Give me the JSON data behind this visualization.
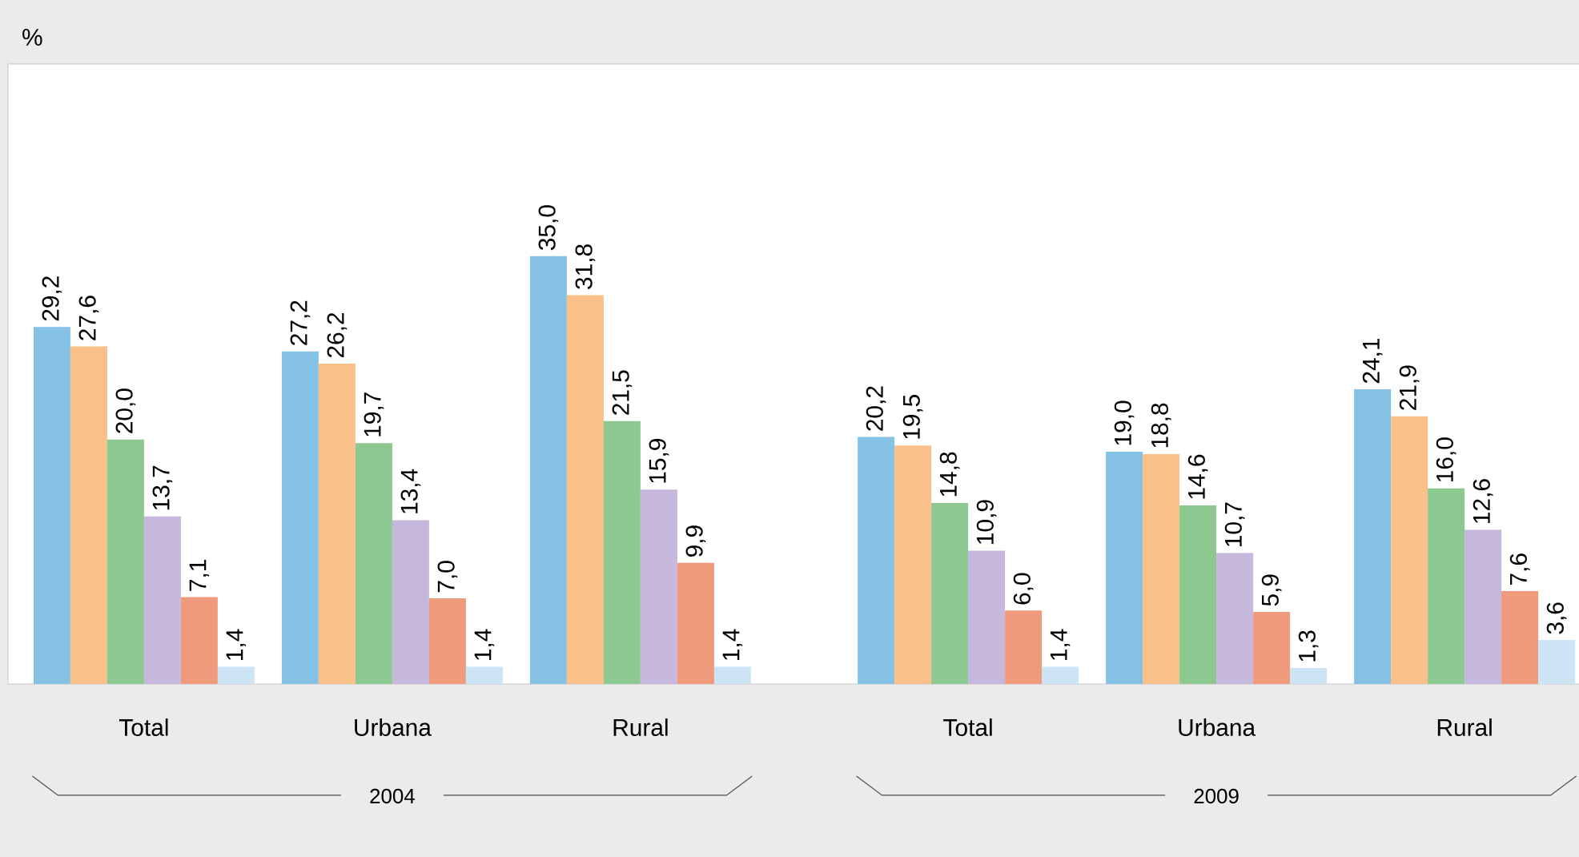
{
  "chart_data": {
    "type": "bar",
    "ylabel": "%",
    "categories": [
      "Total",
      "Urbana",
      "Rural",
      "Total",
      "Urbana",
      "Rural"
    ],
    "annotations": [
      "2004",
      "2009"
    ],
    "series": [
      {
        "color": "#85c1e5",
        "values": [
          29.2,
          27.2,
          35.0,
          20.2,
          19.0,
          24.1
        ],
        "value_labels": [
          "29,2",
          "27,2",
          "35,0",
          "20,2",
          "19,0",
          "24,1"
        ]
      },
      {
        "color": "#f9c08a",
        "values": [
          27.6,
          26.2,
          31.8,
          19.5,
          18.8,
          21.9
        ],
        "value_labels": [
          "27,6",
          "26,2",
          "31,8",
          "19,5",
          "18,8",
          "21,9"
        ]
      },
      {
        "color": "#8dc891",
        "values": [
          20.0,
          19.7,
          21.5,
          14.8,
          14.6,
          16.0
        ],
        "value_labels": [
          "20,0",
          "19,7",
          "21,5",
          "14,8",
          "14,6",
          "16,0"
        ]
      },
      {
        "color": "#c5b8dc",
        "values": [
          13.7,
          13.4,
          15.9,
          10.9,
          10.7,
          12.6
        ],
        "value_labels": [
          "13,7",
          "13,4",
          "15,9",
          "10,9",
          "10,7",
          "12,6"
        ]
      },
      {
        "color": "#f09a7d",
        "values": [
          7.1,
          7.0,
          9.9,
          6.0,
          5.9,
          7.6
        ],
        "value_labels": [
          "7,1",
          "7,0",
          "9,9",
          "6,0",
          "5,9",
          "7,6"
        ]
      },
      {
        "color": "#cde4f5",
        "values": [
          1.4,
          1.4,
          1.4,
          1.4,
          1.3,
          3.6
        ],
        "value_labels": [
          "1,4",
          "1,4",
          "1,4",
          "1,4",
          "1,3",
          "3,6"
        ]
      }
    ],
    "ylim": [
      0,
      50.7
    ],
    "tick_labels": "x"
  }
}
